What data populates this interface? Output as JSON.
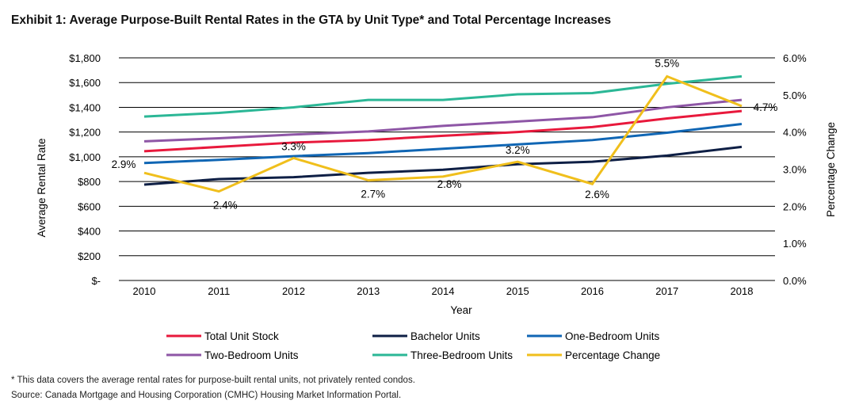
{
  "chart_data": {
    "type": "line",
    "title": "Exhibit 1: Average Purpose-Built Rental Rates in the GTA by Unit Type* and Total Percentage Increases",
    "xlabel": "Year",
    "ylabel": "Average Rental Rate",
    "y2label": "Percentage Change",
    "categories": [
      "2010",
      "2011",
      "2012",
      "2013",
      "2014",
      "2015",
      "2016",
      "2017",
      "2018"
    ],
    "ylim": [
      0,
      1800
    ],
    "y2lim": [
      0,
      6
    ],
    "yticks": [
      "$-",
      "$200",
      "$400",
      "$600",
      "$800",
      "$1,000",
      "$1,200",
      "$1,400",
      "$1,600",
      "$1,800"
    ],
    "y2ticks": [
      "0.0%",
      "1.0%",
      "2.0%",
      "3.0%",
      "4.0%",
      "5.0%",
      "6.0%"
    ],
    "grid": true,
    "legend": "bottom",
    "series": [
      {
        "name": "Total Unit Stock",
        "color": "#e8193c",
        "axis": "left",
        "values": [
          1045,
          1080,
          1115,
          1135,
          1170,
          1200,
          1240,
          1310,
          1370
        ]
      },
      {
        "name": "Bachelor Units",
        "color": "#0e1f45",
        "axis": "left",
        "values": [
          775,
          820,
          835,
          870,
          895,
          940,
          960,
          1010,
          1080
        ]
      },
      {
        "name": "One-Bedroom Units",
        "color": "#1066b4",
        "axis": "left",
        "values": [
          950,
          975,
          1005,
          1030,
          1065,
          1100,
          1135,
          1195,
          1265
        ]
      },
      {
        "name": "Two-Bedroom Units",
        "color": "#8e56a6",
        "axis": "left",
        "values": [
          1125,
          1150,
          1180,
          1205,
          1250,
          1285,
          1320,
          1400,
          1460
        ]
      },
      {
        "name": "Three-Bedroom Units",
        "color": "#2bb796",
        "axis": "left",
        "values": [
          1325,
          1355,
          1400,
          1460,
          1460,
          1505,
          1515,
          1590,
          1650
        ]
      },
      {
        "name": "Percentage Change",
        "color": "#f0bf1c",
        "axis": "right",
        "values": [
          2.9,
          2.4,
          3.3,
          2.7,
          2.8,
          3.2,
          2.6,
          5.5,
          4.7
        ],
        "labels": [
          "2.9%",
          "2.4%",
          "3.3%",
          "2.7%",
          "2.8%",
          "3.2%",
          "2.6%",
          "5.5%",
          "4.7%"
        ]
      }
    ]
  },
  "footnote": "* This data covers the average rental rates for purpose-built rental units, not privately rented condos.",
  "source": "Source: Canada Mortgage and Housing Corporation (CMHC) Housing Market Information Portal."
}
